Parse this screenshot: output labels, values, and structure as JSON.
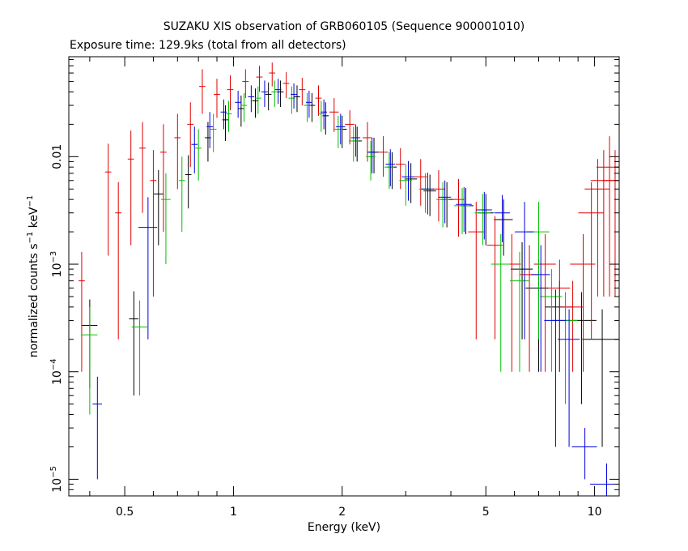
{
  "chart_data": {
    "type": "scatter",
    "title": "SUZAKU XIS observation of GRB060105 (Sequence 900001010)",
    "subtitle": "Exposure time: 129.9ks (total from all detectors)",
    "xlabel": "Energy (keV)",
    "ylabel_main": "normalized counts s",
    "ylabel_mid": " keV",
    "ylabel_sup": "−1",
    "x_scale": "log",
    "y_scale": "log",
    "xlim": [
      0.35,
      11.7
    ],
    "ylim": [
      7e-06,
      0.085
    ],
    "x_ticks": [
      {
        "value": 0.5,
        "label": "0.5"
      },
      {
        "value": 1,
        "label": "1"
      },
      {
        "value": 2,
        "label": "2"
      },
      {
        "value": 5,
        "label": "5"
      },
      {
        "value": 10,
        "label": "10"
      }
    ],
    "y_ticks": [
      {
        "value": 1e-05,
        "base": "10",
        "exp": "−5"
      },
      {
        "value": 0.0001,
        "base": "10",
        "exp": "−4"
      },
      {
        "value": 0.001,
        "base": "10",
        "exp": "−3"
      },
      {
        "value": 0.01,
        "plain": "0.01"
      }
    ],
    "grid": false,
    "legend": "none",
    "series": [
      {
        "color": "#000000",
        "points": [
          [
            0.4,
            0.00027,
            0.05,
            0.0002
          ],
          [
            0.53,
            0.00031,
            0.03,
            0.00025
          ],
          [
            0.62,
            0.0045,
            0.03,
            0.003
          ],
          [
            0.75,
            0.0068,
            0.02,
            0.0035
          ],
          [
            0.85,
            0.015,
            0.02,
            0.006
          ],
          [
            0.95,
            0.022,
            0.02,
            0.008
          ],
          [
            1.05,
            0.028,
            0.02,
            0.009
          ],
          [
            1.15,
            0.033,
            0.02,
            0.01
          ],
          [
            1.25,
            0.038,
            0.02,
            0.011
          ],
          [
            1.35,
            0.04,
            0.02,
            0.011
          ],
          [
            1.5,
            0.036,
            0.02,
            0.01
          ],
          [
            1.65,
            0.03,
            0.02,
            0.009
          ],
          [
            1.8,
            0.024,
            0.02,
            0.008
          ],
          [
            2.0,
            0.018,
            0.03,
            0.006
          ],
          [
            2.2,
            0.014,
            0.03,
            0.005
          ],
          [
            2.45,
            0.011,
            0.03,
            0.004
          ],
          [
            2.75,
            0.008,
            0.03,
            0.003
          ],
          [
            3.1,
            0.0062,
            0.04,
            0.0025
          ],
          [
            3.5,
            0.0048,
            0.04,
            0.002
          ],
          [
            3.9,
            0.004,
            0.04,
            0.0018
          ],
          [
            4.4,
            0.0035,
            0.05,
            0.0016
          ],
          [
            5.0,
            0.003,
            0.05,
            0.0015
          ],
          [
            5.6,
            0.0026,
            0.06,
            0.0014
          ],
          [
            6.3,
            0.0009,
            0.07,
            0.0007
          ],
          [
            7.0,
            0.0006,
            0.08,
            0.0005
          ],
          [
            8.0,
            0.0004,
            0.09,
            0.0003
          ],
          [
            9.2,
            0.0003,
            0.1,
            0.00025
          ],
          [
            10.5,
            0.0002,
            0.12,
            0.00018
          ]
        ]
      },
      {
        "color": "#e00000",
        "points": [
          [
            0.38,
            0.0007,
            0.02,
            0.0006
          ],
          [
            0.45,
            0.0072,
            0.02,
            0.006
          ],
          [
            0.48,
            0.003,
            0.02,
            0.0028
          ],
          [
            0.52,
            0.0095,
            0.02,
            0.008
          ],
          [
            0.56,
            0.012,
            0.02,
            0.009
          ],
          [
            0.6,
            0.006,
            0.02,
            0.0055
          ],
          [
            0.64,
            0.011,
            0.02,
            0.009
          ],
          [
            0.7,
            0.015,
            0.02,
            0.01
          ],
          [
            0.76,
            0.02,
            0.02,
            0.012
          ],
          [
            0.82,
            0.045,
            0.02,
            0.02
          ],
          [
            0.9,
            0.038,
            0.02,
            0.015
          ],
          [
            0.98,
            0.042,
            0.02,
            0.015
          ],
          [
            1.08,
            0.05,
            0.02,
            0.015
          ],
          [
            1.18,
            0.055,
            0.02,
            0.015
          ],
          [
            1.28,
            0.06,
            0.02,
            0.015
          ],
          [
            1.4,
            0.048,
            0.02,
            0.013
          ],
          [
            1.55,
            0.042,
            0.02,
            0.012
          ],
          [
            1.72,
            0.035,
            0.02,
            0.011
          ],
          [
            1.9,
            0.026,
            0.03,
            0.009
          ],
          [
            2.1,
            0.02,
            0.03,
            0.007
          ],
          [
            2.35,
            0.015,
            0.03,
            0.006
          ],
          [
            2.6,
            0.011,
            0.03,
            0.0045
          ],
          [
            2.9,
            0.0085,
            0.03,
            0.0035
          ],
          [
            3.3,
            0.0065,
            0.04,
            0.003
          ],
          [
            3.7,
            0.005,
            0.04,
            0.0025
          ],
          [
            4.2,
            0.004,
            0.04,
            0.0022
          ],
          [
            4.7,
            0.002,
            0.05,
            0.0018
          ],
          [
            5.3,
            0.0015,
            0.05,
            0.0013
          ],
          [
            5.9,
            0.001,
            0.06,
            0.0009
          ],
          [
            6.6,
            0.0008,
            0.06,
            0.0007
          ],
          [
            7.3,
            0.001,
            0.07,
            0.0009
          ],
          [
            8.0,
            0.0006,
            0.07,
            0.0005
          ],
          [
            8.7,
            0.0004,
            0.07,
            0.0003
          ],
          [
            9.3,
            0.001,
            0.08,
            0.0009
          ],
          [
            9.8,
            0.003,
            0.08,
            0.0028
          ],
          [
            10.2,
            0.005,
            0.08,
            0.0045
          ],
          [
            10.6,
            0.006,
            0.08,
            0.0055
          ],
          [
            11.0,
            0.008,
            0.08,
            0.0075
          ],
          [
            11.4,
            0.006,
            0.08,
            0.0055
          ]
        ]
      },
      {
        "color": "#00c000",
        "points": [
          [
            0.4,
            0.00022,
            0.05,
            0.00018
          ],
          [
            0.55,
            0.00026,
            0.05,
            0.0002
          ],
          [
            0.65,
            0.004,
            0.03,
            0.003
          ],
          [
            0.72,
            0.006,
            0.02,
            0.004
          ],
          [
            0.8,
            0.012,
            0.02,
            0.006
          ],
          [
            0.88,
            0.018,
            0.02,
            0.007
          ],
          [
            0.97,
            0.025,
            0.02,
            0.008
          ],
          [
            1.07,
            0.03,
            0.02,
            0.009
          ],
          [
            1.17,
            0.035,
            0.02,
            0.01
          ],
          [
            1.3,
            0.04,
            0.02,
            0.011
          ],
          [
            1.45,
            0.035,
            0.02,
            0.01
          ],
          [
            1.6,
            0.03,
            0.02,
            0.009
          ],
          [
            1.75,
            0.025,
            0.02,
            0.008
          ],
          [
            1.95,
            0.018,
            0.03,
            0.006
          ],
          [
            2.15,
            0.014,
            0.03,
            0.005
          ],
          [
            2.4,
            0.01,
            0.03,
            0.004
          ],
          [
            2.7,
            0.008,
            0.03,
            0.003
          ],
          [
            3.0,
            0.006,
            0.04,
            0.0025
          ],
          [
            3.4,
            0.005,
            0.04,
            0.002
          ],
          [
            3.8,
            0.004,
            0.04,
            0.0018
          ],
          [
            4.3,
            0.0035,
            0.05,
            0.0016
          ],
          [
            4.9,
            0.003,
            0.05,
            0.0015
          ],
          [
            5.5,
            0.001,
            0.06,
            0.0009
          ],
          [
            6.2,
            0.0007,
            0.06,
            0.0006
          ],
          [
            7.0,
            0.002,
            0.07,
            0.0018
          ],
          [
            7.6,
            0.0005,
            0.07,
            0.0004
          ],
          [
            8.3,
            0.0003,
            0.08,
            0.00025
          ]
        ]
      },
      {
        "color": "#0000e0",
        "points": [
          [
            0.42,
            5e-05,
            0.03,
            4e-05
          ],
          [
            0.58,
            0.0022,
            0.06,
            0.002
          ],
          [
            0.78,
            0.013,
            0.02,
            0.006
          ],
          [
            0.86,
            0.019,
            0.02,
            0.007
          ],
          [
            0.94,
            0.026,
            0.02,
            0.008
          ],
          [
            1.03,
            0.032,
            0.02,
            0.009
          ],
          [
            1.12,
            0.036,
            0.02,
            0.01
          ],
          [
            1.22,
            0.04,
            0.02,
            0.011
          ],
          [
            1.33,
            0.042,
            0.02,
            0.011
          ],
          [
            1.47,
            0.038,
            0.02,
            0.01
          ],
          [
            1.62,
            0.032,
            0.02,
            0.009
          ],
          [
            1.78,
            0.026,
            0.02,
            0.008
          ],
          [
            1.98,
            0.019,
            0.03,
            0.006
          ],
          [
            2.18,
            0.015,
            0.03,
            0.005
          ],
          [
            2.42,
            0.011,
            0.03,
            0.004
          ],
          [
            2.72,
            0.0085,
            0.03,
            0.0032
          ],
          [
            3.05,
            0.0065,
            0.04,
            0.0026
          ],
          [
            3.45,
            0.005,
            0.04,
            0.0021
          ],
          [
            3.85,
            0.0042,
            0.04,
            0.0018
          ],
          [
            4.35,
            0.0036,
            0.05,
            0.0016
          ],
          [
            4.95,
            0.0032,
            0.05,
            0.0015
          ],
          [
            5.55,
            0.003,
            0.05,
            0.0014
          ],
          [
            6.4,
            0.002,
            0.06,
            0.0018
          ],
          [
            7.1,
            0.0008,
            0.06,
            0.0007
          ],
          [
            7.8,
            0.0003,
            0.07,
            0.00028
          ],
          [
            8.5,
            0.0002,
            0.07,
            0.00018
          ],
          [
            9.4,
            2e-05,
            0.08,
            1e-05
          ],
          [
            10.8,
            9e-06,
            0.1,
            5e-06
          ]
        ]
      }
    ]
  }
}
